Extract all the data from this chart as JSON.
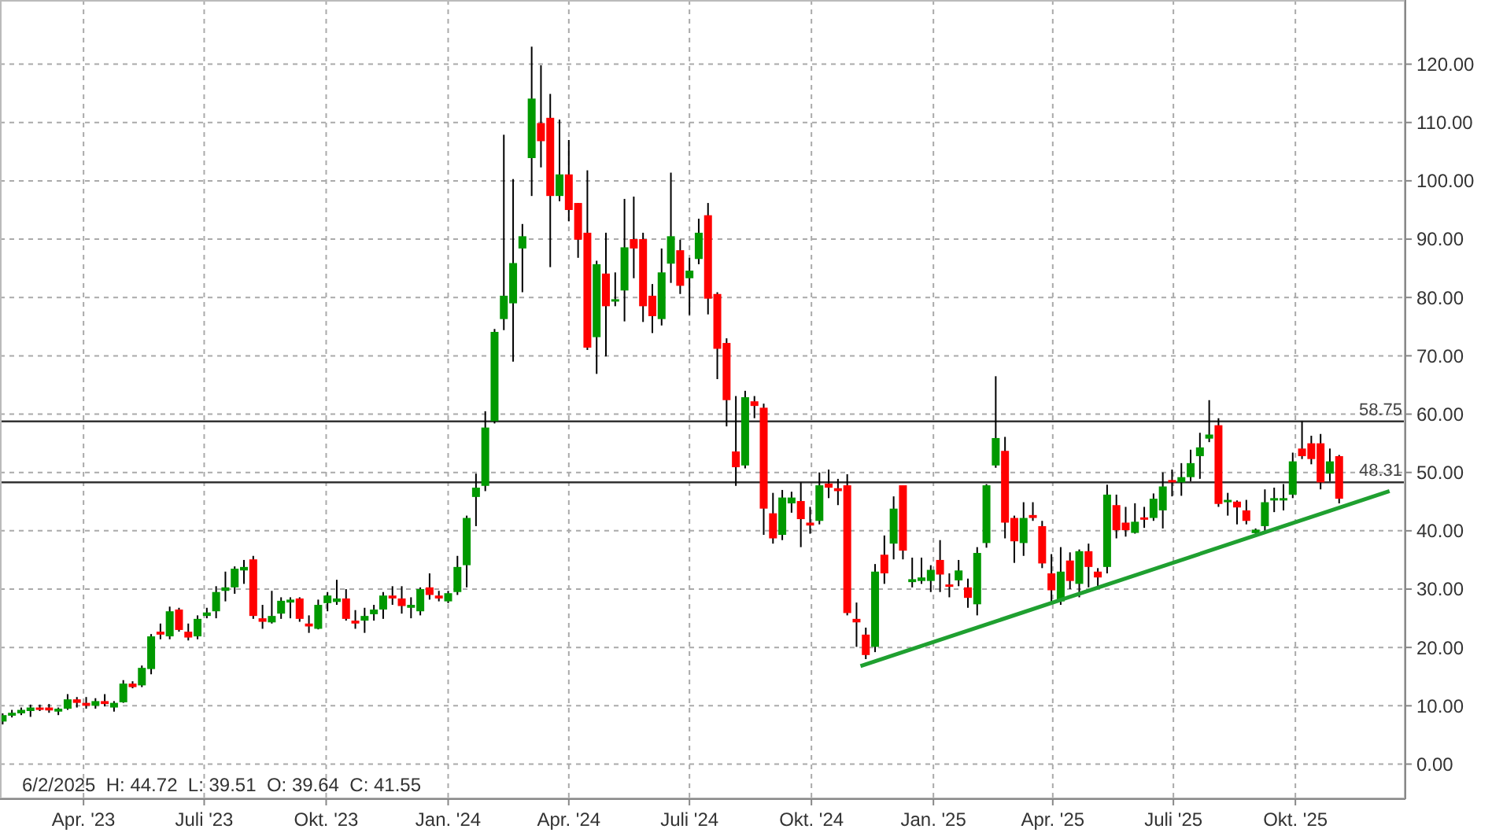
{
  "chart_data": {
    "type": "candlestick",
    "x": [
      "2023-01-30",
      "2023-02-06",
      "2023-02-13",
      "2023-02-20",
      "2023-02-27",
      "2023-03-06",
      "2023-03-13",
      "2023-03-20",
      "2023-03-27",
      "2023-04-03",
      "2023-04-10",
      "2023-04-17",
      "2023-04-24",
      "2023-05-01",
      "2023-05-08",
      "2023-05-15",
      "2023-05-22",
      "2023-05-29",
      "2023-06-05",
      "2023-06-12",
      "2023-06-19",
      "2023-06-26",
      "2023-07-03",
      "2023-07-10",
      "2023-07-17",
      "2023-07-24",
      "2023-07-31",
      "2023-08-07",
      "2023-08-14",
      "2023-08-21",
      "2023-08-28",
      "2023-09-04",
      "2023-09-11",
      "2023-09-18",
      "2023-09-25",
      "2023-10-02",
      "2023-10-09",
      "2023-10-16",
      "2023-10-23",
      "2023-10-30",
      "2023-11-06",
      "2023-11-13",
      "2023-11-20",
      "2023-11-27",
      "2023-12-04",
      "2023-12-11",
      "2023-12-18",
      "2023-12-25",
      "2024-01-01",
      "2024-01-08",
      "2024-01-15",
      "2024-01-22",
      "2024-01-29",
      "2024-02-05",
      "2024-02-12",
      "2024-02-19",
      "2024-02-26",
      "2024-03-04",
      "2024-03-11",
      "2024-03-18",
      "2024-03-25",
      "2024-04-01",
      "2024-04-08",
      "2024-04-15",
      "2024-04-22",
      "2024-04-29",
      "2024-05-06",
      "2024-05-13",
      "2024-05-20",
      "2024-05-27",
      "2024-06-03",
      "2024-06-10",
      "2024-06-17",
      "2024-06-24",
      "2024-07-01",
      "2024-07-08",
      "2024-07-15",
      "2024-07-22",
      "2024-07-29",
      "2024-08-05",
      "2024-08-12",
      "2024-08-19",
      "2024-08-26",
      "2024-09-02",
      "2024-09-09",
      "2024-09-16",
      "2024-09-23",
      "2024-09-30",
      "2024-10-07",
      "2024-10-14",
      "2024-10-21",
      "2024-10-28",
      "2024-11-04",
      "2024-11-11",
      "2024-11-18",
      "2024-11-25",
      "2024-12-02",
      "2024-12-09",
      "2024-12-16",
      "2024-12-23",
      "2024-12-30",
      "2025-01-06",
      "2025-01-13",
      "2025-01-20",
      "2025-01-27",
      "2025-02-03",
      "2025-02-10",
      "2025-02-17",
      "2025-02-24",
      "2025-03-03",
      "2025-03-10",
      "2025-03-17",
      "2025-03-24",
      "2025-03-31",
      "2025-04-07",
      "2025-04-14",
      "2025-04-21",
      "2025-04-28",
      "2025-05-05",
      "2025-05-12",
      "2025-05-19",
      "2025-05-26",
      "2025-06-02",
      "2025-06-09",
      "2025-06-16",
      "2025-06-23",
      "2025-06-30",
      "2025-07-07",
      "2025-07-14",
      "2025-07-21",
      "2025-07-28",
      "2025-08-04",
      "2025-08-11",
      "2025-08-18",
      "2025-08-25",
      "2025-09-01",
      "2025-09-08",
      "2025-09-15",
      "2025-09-22",
      "2025-09-29",
      "2025-10-06",
      "2025-10-13",
      "2025-10-20",
      "2025-10-27",
      "2025-11-03"
    ],
    "ohlc": [
      [
        7.3,
        8.7,
        6.8,
        8.4
      ],
      [
        8.3,
        9.3,
        8.0,
        8.8
      ],
      [
        8.7,
        9.7,
        8.4,
        9.3
      ],
      [
        9.1,
        10.2,
        8.1,
        9.7
      ],
      [
        9.7,
        10.2,
        9.1,
        9.3
      ],
      [
        9.7,
        10.3,
        8.8,
        9.2
      ],
      [
        9.0,
        9.7,
        8.4,
        9.5
      ],
      [
        9.5,
        12.0,
        9.3,
        11.1
      ],
      [
        11.1,
        11.5,
        9.7,
        10.5
      ],
      [
        10.5,
        11.5,
        9.5,
        10.0
      ],
      [
        10.0,
        11.3,
        9.5,
        10.8
      ],
      [
        10.8,
        12.0,
        9.9,
        10.3
      ],
      [
        9.7,
        10.8,
        9.0,
        10.5
      ],
      [
        10.6,
        14.4,
        10.5,
        13.8
      ],
      [
        13.8,
        14.2,
        13.0,
        13.2
      ],
      [
        13.5,
        16.9,
        13.2,
        16.5
      ],
      [
        16.3,
        22.3,
        15.4,
        21.9
      ],
      [
        22.7,
        24.1,
        21.4,
        22.2
      ],
      [
        21.9,
        27.0,
        21.4,
        26.2
      ],
      [
        26.5,
        26.8,
        22.7,
        23.0
      ],
      [
        22.7,
        24.1,
        21.2,
        21.7
      ],
      [
        21.9,
        25.5,
        21.4,
        24.9
      ],
      [
        25.4,
        26.8,
        25.0,
        26.0
      ],
      [
        26.2,
        30.5,
        25.0,
        29.5
      ],
      [
        29.7,
        33.0,
        27.9,
        30.3
      ],
      [
        30.3,
        33.9,
        29.2,
        33.5
      ],
      [
        33.2,
        35.0,
        30.9,
        33.8
      ],
      [
        35.1,
        35.7,
        24.9,
        25.4
      ],
      [
        25.0,
        27.3,
        23.2,
        24.4
      ],
      [
        24.3,
        29.7,
        24.1,
        25.4
      ],
      [
        25.8,
        28.6,
        24.9,
        28.0
      ],
      [
        27.7,
        28.6,
        25.0,
        28.2
      ],
      [
        28.4,
        28.6,
        24.4,
        24.9
      ],
      [
        24.1,
        25.5,
        22.5,
        23.6
      ],
      [
        23.2,
        28.2,
        23.1,
        27.3
      ],
      [
        27.6,
        29.5,
        26.2,
        28.9
      ],
      [
        27.8,
        31.6,
        27.3,
        28.4
      ],
      [
        28.4,
        30.0,
        24.6,
        24.9
      ],
      [
        24.6,
        26.4,
        23.2,
        24.1
      ],
      [
        24.6,
        26.8,
        22.5,
        25.4
      ],
      [
        25.7,
        27.3,
        24.6,
        26.5
      ],
      [
        26.5,
        29.5,
        24.9,
        28.9
      ],
      [
        28.9,
        30.5,
        27.3,
        28.4
      ],
      [
        28.4,
        30.5,
        25.8,
        27.1
      ],
      [
        26.8,
        28.6,
        25.0,
        27.3
      ],
      [
        26.2,
        30.3,
        25.5,
        30.0
      ],
      [
        30.3,
        32.7,
        28.2,
        29.0
      ],
      [
        28.9,
        29.7,
        27.9,
        28.4
      ],
      [
        27.9,
        29.7,
        27.6,
        29.3
      ],
      [
        29.5,
        35.7,
        29.0,
        33.8
      ],
      [
        34.1,
        42.6,
        30.3,
        42.2
      ],
      [
        45.8,
        49.8,
        40.8,
        47.4
      ],
      [
        47.7,
        60.5,
        46.8,
        57.7
      ],
      [
        58.8,
        74.6,
        58.4,
        74.1
      ],
      [
        76.3,
        107.9,
        74.4,
        80.3
      ],
      [
        79.0,
        100.3,
        69.0,
        85.9
      ],
      [
        88.4,
        92.6,
        80.9,
        90.5
      ],
      [
        103.9,
        123.0,
        97.4,
        114.1
      ],
      [
        109.9,
        119.8,
        102.3,
        106.8
      ],
      [
        110.8,
        114.9,
        85.2,
        97.4
      ],
      [
        97.4,
        110.5,
        96.5,
        101.1
      ],
      [
        101.1,
        107.0,
        93.1,
        95.0
      ],
      [
        96.2,
        96.2,
        86.8,
        89.9
      ],
      [
        91.1,
        101.8,
        71.0,
        71.4
      ],
      [
        73.2,
        86.3,
        66.9,
        85.7
      ],
      [
        84.1,
        91.1,
        69.9,
        78.5
      ],
      [
        79.3,
        84.3,
        78.5,
        79.7
      ],
      [
        81.2,
        96.9,
        75.9,
        88.6
      ],
      [
        90.0,
        97.3,
        83.3,
        88.4
      ],
      [
        90.0,
        91.1,
        75.8,
        78.5
      ],
      [
        80.3,
        82.3,
        73.9,
        76.8
      ],
      [
        76.3,
        88.4,
        75.2,
        84.3
      ],
      [
        85.8,
        101.4,
        82.5,
        90.5
      ],
      [
        88.1,
        89.9,
        80.6,
        82.0
      ],
      [
        83.3,
        86.8,
        77.0,
        84.6
      ],
      [
        86.6,
        93.5,
        85.7,
        91.1
      ],
      [
        94.1,
        96.2,
        77.1,
        79.8
      ],
      [
        80.6,
        80.9,
        66.0,
        71.2
      ],
      [
        72.2,
        73.0,
        57.9,
        62.4
      ],
      [
        53.6,
        63.1,
        47.7,
        50.9
      ],
      [
        51.2,
        64.0,
        50.7,
        62.9
      ],
      [
        62.2,
        63.1,
        59.3,
        61.4
      ],
      [
        61.1,
        61.8,
        39.3,
        43.8
      ],
      [
        43.0,
        46.5,
        37.8,
        38.7
      ],
      [
        39.3,
        47.0,
        38.4,
        45.7
      ],
      [
        44.7,
        46.7,
        43.1,
        45.7
      ],
      [
        45.1,
        48.3,
        37.2,
        42.0
      ],
      [
        41.4,
        44.1,
        39.5,
        40.9
      ],
      [
        41.7,
        50.0,
        41.1,
        47.8
      ],
      [
        48.1,
        50.5,
        45.6,
        47.4
      ],
      [
        47.3,
        48.9,
        44.4,
        46.8
      ],
      [
        47.8,
        49.7,
        25.5,
        25.9
      ],
      [
        24.9,
        27.7,
        20.1,
        24.3
      ],
      [
        22.2,
        23.4,
        18.0,
        18.7
      ],
      [
        20.1,
        34.3,
        19.2,
        33.0
      ],
      [
        35.9,
        39.2,
        30.9,
        32.7
      ],
      [
        37.8,
        45.9,
        35.1,
        43.8
      ],
      [
        47.8,
        47.8,
        35.1,
        36.6
      ],
      [
        31.2,
        35.4,
        30.3,
        31.7
      ],
      [
        31.4,
        35.4,
        30.9,
        32.0
      ],
      [
        31.4,
        34.1,
        29.5,
        33.3
      ],
      [
        35.0,
        38.4,
        29.5,
        32.5
      ],
      [
        30.8,
        32.7,
        28.6,
        30.4
      ],
      [
        31.5,
        35.0,
        30.5,
        33.2
      ],
      [
        30.3,
        31.8,
        26.8,
        28.5
      ],
      [
        27.4,
        37.2,
        25.5,
        36.2
      ],
      [
        37.9,
        48.0,
        37.1,
        47.8
      ],
      [
        51.2,
        66.5,
        50.8,
        55.9
      ],
      [
        53.7,
        56.1,
        38.7,
        41.4
      ],
      [
        42.2,
        42.6,
        34.5,
        38.2
      ],
      [
        37.9,
        44.9,
        35.7,
        42.2
      ],
      [
        42.7,
        44.9,
        41.7,
        42.2
      ],
      [
        40.8,
        41.7,
        33.6,
        34.4
      ],
      [
        32.7,
        36.0,
        27.7,
        29.8
      ],
      [
        27.9,
        37.2,
        27.3,
        33.0
      ],
      [
        34.9,
        36.3,
        30.0,
        31.4
      ],
      [
        30.9,
        36.8,
        28.6,
        36.5
      ],
      [
        36.5,
        37.8,
        30.3,
        33.8
      ],
      [
        33.0,
        33.6,
        30.5,
        32.0
      ],
      [
        33.8,
        47.9,
        32.7,
        46.2
      ],
      [
        44.4,
        46.2,
        38.7,
        40.1
      ],
      [
        41.4,
        44.1,
        39.0,
        40.1
      ],
      [
        39.64,
        44.72,
        39.51,
        41.55
      ],
      [
        42.3,
        44.1,
        40.5,
        41.9
      ],
      [
        42.2,
        46.4,
        41.7,
        45.5
      ],
      [
        43.5,
        50.0,
        40.4,
        47.6
      ],
      [
        48.7,
        50.5,
        45.9,
        48.3
      ],
      [
        48.3,
        51.6,
        46.0,
        49.2
      ],
      [
        49.2,
        53.9,
        48.5,
        51.6
      ],
      [
        52.8,
        56.8,
        48.9,
        54.3
      ],
      [
        55.8,
        62.4,
        55.2,
        56.5
      ],
      [
        58.1,
        59.3,
        44.1,
        44.6
      ],
      [
        44.9,
        46.5,
        42.6,
        45.3
      ],
      [
        45.0,
        45.2,
        41.1,
        44.0
      ],
      [
        43.5,
        45.3,
        41.1,
        41.7
      ],
      [
        39.6,
        40.4,
        39.5,
        40.2
      ],
      [
        40.8,
        47.1,
        39.6,
        44.9
      ],
      [
        45.2,
        47.4,
        43.2,
        45.6
      ],
      [
        45.2,
        48.0,
        43.5,
        45.6
      ],
      [
        46.2,
        53.4,
        45.6,
        51.9
      ],
      [
        54.1,
        58.8,
        52.3,
        52.8
      ],
      [
        55.0,
        56.3,
        51.4,
        52.3
      ],
      [
        55.0,
        56.6,
        47.1,
        48.3
      ],
      [
        49.8,
        54.1,
        48.5,
        51.9
      ],
      [
        52.8,
        53.0,
        44.7,
        45.5
      ]
    ],
    "colors": [
      "#009900",
      "#009900",
      "#009900",
      "#009900",
      "#ff0000",
      "#ff0000",
      "#009900",
      "#009900",
      "#ff0000",
      "#ff0000",
      "#009900",
      "#ff0000",
      "#009900",
      "#009900",
      "#ff0000",
      "#009900",
      "#009900",
      "#ff0000",
      "#009900",
      "#ff0000",
      "#ff0000",
      "#009900",
      "#009900",
      "#009900",
      "#009900",
      "#009900",
      "#009900",
      "#ff0000",
      "#ff0000",
      "#009900",
      "#009900",
      "#009900",
      "#ff0000",
      "#ff0000",
      "#009900",
      "#009900",
      "#009900",
      "#ff0000",
      "#ff0000",
      "#009900",
      "#009900",
      "#009900",
      "#ff0000",
      "#ff0000",
      "#009900",
      "#009900",
      "#ff0000",
      "#ff0000",
      "#009900",
      "#009900",
      "#009900",
      "#009900",
      "#009900",
      "#009900",
      "#009900",
      "#009900",
      "#009900",
      "#009900",
      "#ff0000",
      "#ff0000",
      "#009900",
      "#ff0000",
      "#ff0000",
      "#ff0000",
      "#009900",
      "#ff0000",
      "#009900",
      "#009900",
      "#ff0000",
      "#ff0000",
      "#ff0000",
      "#009900",
      "#009900",
      "#ff0000",
      "#009900",
      "#009900",
      "#ff0000",
      "#ff0000",
      "#ff0000",
      "#ff0000",
      "#009900",
      "#ff0000",
      "#ff0000",
      "#ff0000",
      "#009900",
      "#009900",
      "#ff0000",
      "#ff0000",
      "#009900",
      "#ff0000",
      "#ff0000",
      "#ff0000",
      "#ff0000",
      "#ff0000",
      "#009900",
      "#ff0000",
      "#009900",
      "#ff0000",
      "#009900",
      "#009900",
      "#009900",
      "#ff0000",
      "#ff0000",
      "#009900",
      "#ff0000",
      "#009900",
      "#009900",
      "#009900",
      "#ff0000",
      "#ff0000",
      "#009900",
      "#ff0000",
      "#ff0000",
      "#ff0000",
      "#009900",
      "#ff0000",
      "#009900",
      "#ff0000",
      "#ff0000",
      "#009900",
      "#ff0000",
      "#ff0000",
      "#009900",
      "#ff0000",
      "#009900",
      "#009900",
      "#ff0000",
      "#009900",
      "#009900",
      "#009900",
      "#009900",
      "#ff0000",
      "#009900",
      "#ff0000",
      "#ff0000",
      "#009900",
      "#009900",
      "#009900",
      "#009900",
      "#009900",
      "#ff0000",
      "#ff0000",
      "#ff0000",
      "#009900",
      "#ff0000"
    ],
    "series": [
      {
        "type": "line",
        "color": "#1fa030",
        "x": [
          "2024-11-07",
          "2025-12-11"
        ],
        "values": [
          16.8,
          46.8
        ]
      }
    ],
    "ref_lines": [
      {
        "axis": "y",
        "value": 58.75,
        "label": "58.75",
        "color": "#333333"
      },
      {
        "axis": "y",
        "value": 48.31,
        "label": "48.31",
        "color": "#333333"
      }
    ],
    "annotations": [
      "6/2/2025  H: 44.72  L: 39.51  O: 39.64  C: 41.55"
    ],
    "xlim": [
      "2023-01-28",
      "2025-12-23"
    ],
    "xticks": [
      {
        "value": "2023-04-01",
        "label": "Apr. '23"
      },
      {
        "value": "2023-07-01",
        "label": "Juli '23"
      },
      {
        "value": "2023-10-01",
        "label": "Okt. '23"
      },
      {
        "value": "2024-01-01",
        "label": "Jan. '24"
      },
      {
        "value": "2024-04-01",
        "label": "Apr. '24"
      },
      {
        "value": "2024-07-01",
        "label": "Juli '24"
      },
      {
        "value": "2024-10-01",
        "label": "Okt. '24"
      },
      {
        "value": "2025-01-01",
        "label": "Jan. '25"
      },
      {
        "value": "2025-04-01",
        "label": "Apr. '25"
      },
      {
        "value": "2025-07-01",
        "label": "Juli '25"
      },
      {
        "value": "2025-10-01",
        "label": "Okt. '25"
      }
    ],
    "ylim": [
      -6,
      131
    ],
    "yticks": [
      {
        "value": 0,
        "label": "0.00"
      },
      {
        "value": 10,
        "label": "10.00"
      },
      {
        "value": 20,
        "label": "20.00"
      },
      {
        "value": 30,
        "label": "30.00"
      },
      {
        "value": 40,
        "label": "40.00"
      },
      {
        "value": 50,
        "label": "50.00"
      },
      {
        "value": 60,
        "label": "60.00"
      },
      {
        "value": 70,
        "label": "70.00"
      },
      {
        "value": 80,
        "label": "80.00"
      },
      {
        "value": 90,
        "label": "90.00"
      },
      {
        "value": 100,
        "label": "100.00"
      },
      {
        "value": 110,
        "label": "110.00"
      },
      {
        "value": 120,
        "label": "120.00"
      }
    ],
    "grid": true
  }
}
